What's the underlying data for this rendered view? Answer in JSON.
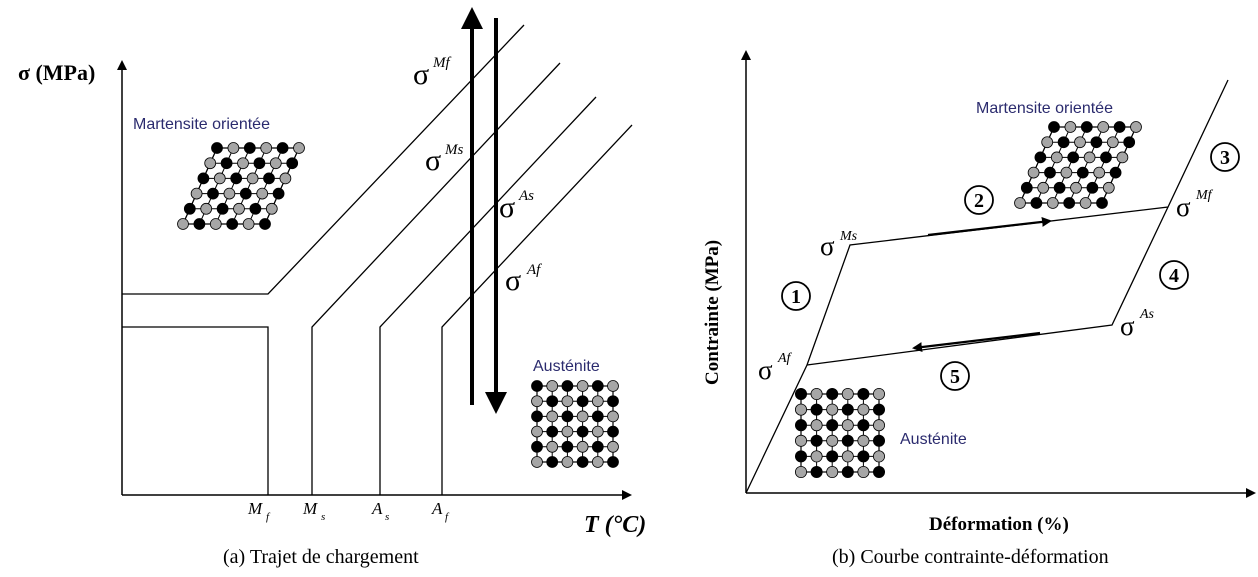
{
  "left_panel": {
    "y_axis_label": "σ (MPa)",
    "x_axis_label": "T (°C)",
    "caption": "(a) Trajet de chargement",
    "martensite_label": "Martensite orientée",
    "austenite_label": "Austénite",
    "stress_labels": {
      "Mf": "Mf",
      "Ms": "Ms",
      "As": "As",
      "Af": "Af",
      "symbol": "σ"
    },
    "temperature_ticks": [
      {
        "main": "M",
        "sub": "f"
      },
      {
        "main": "M",
        "sub": "s"
      },
      {
        "main": "A",
        "sub": "s"
      },
      {
        "main": "A",
        "sub": "f"
      }
    ]
  },
  "right_panel": {
    "y_axis_label": "Contrainte (MPa)",
    "x_axis_label": "Déformation (%)",
    "caption": "(b) Courbe contrainte-déformation",
    "martensite_label": "Martensite orientée",
    "austenite_label": "Austénite",
    "stress_labels": {
      "Ms": "Ms",
      "Mf": "Mf",
      "As": "As",
      "Af": "Af",
      "symbol": "σ"
    },
    "step_numbers": [
      "1",
      "2",
      "3",
      "4",
      "5"
    ]
  },
  "colors": {
    "label_blue": "#2b2b6e",
    "line": "#000000",
    "grey_atom": "#a6a6a6"
  }
}
